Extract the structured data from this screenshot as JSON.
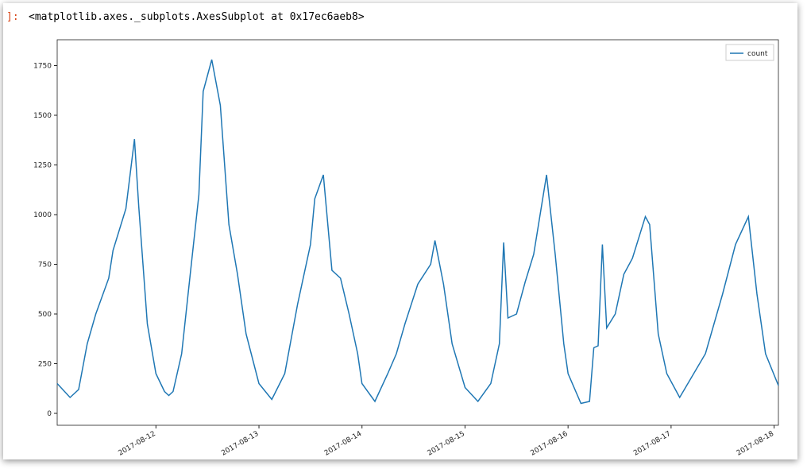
{
  "output_prompt": "]:",
  "output_text": "<matplotlib.axes._subplots.AxesSubplot at 0x17ec6aeb8>",
  "chart_data": {
    "type": "line",
    "x": [
      "2017-08-11T01:00",
      "2017-08-11T04:00",
      "2017-08-11T06:00",
      "2017-08-11T08:00",
      "2017-08-11T10:00",
      "2017-08-11T13:00",
      "2017-08-11T14:00",
      "2017-08-11T17:00",
      "2017-08-11T19:00",
      "2017-08-11T20:00",
      "2017-08-11T22:00",
      "2017-08-12T00:00",
      "2017-08-12T02:00",
      "2017-08-12T03:00",
      "2017-08-12T04:00",
      "2017-08-12T06:00",
      "2017-08-12T08:00",
      "2017-08-12T10:00",
      "2017-08-12T11:00",
      "2017-08-12T13:00",
      "2017-08-12T15:00",
      "2017-08-12T17:00",
      "2017-08-12T19:00",
      "2017-08-12T21:00",
      "2017-08-13T00:00",
      "2017-08-13T03:00",
      "2017-08-13T06:00",
      "2017-08-13T09:00",
      "2017-08-13T12:00",
      "2017-08-13T13:00",
      "2017-08-13T15:00",
      "2017-08-13T17:00",
      "2017-08-13T19:00",
      "2017-08-13T21:00",
      "2017-08-13T23:00",
      "2017-08-14T00:00",
      "2017-08-14T03:00",
      "2017-08-14T06:00",
      "2017-08-14T08:00",
      "2017-08-14T10:00",
      "2017-08-14T13:00",
      "2017-08-14T16:00",
      "2017-08-14T17:00",
      "2017-08-14T19:00",
      "2017-08-14T21:00",
      "2017-08-15T00:00",
      "2017-08-15T03:00",
      "2017-08-15T06:00",
      "2017-08-15T08:00",
      "2017-08-15T09:00",
      "2017-08-15T10:00",
      "2017-08-15T12:00",
      "2017-08-15T14:00",
      "2017-08-15T16:00",
      "2017-08-15T19:00",
      "2017-08-15T21:00",
      "2017-08-15T23:00",
      "2017-08-16T00:00",
      "2017-08-16T03:00",
      "2017-08-16T05:00",
      "2017-08-16T06:00",
      "2017-08-16T07:00",
      "2017-08-16T08:00",
      "2017-08-16T09:00",
      "2017-08-16T11:00",
      "2017-08-16T13:00",
      "2017-08-16T15:00",
      "2017-08-16T18:00",
      "2017-08-16T19:00",
      "2017-08-16T21:00",
      "2017-08-16T23:00",
      "2017-08-17T02:00",
      "2017-08-17T08:00",
      "2017-08-17T10:00",
      "2017-08-17T12:00",
      "2017-08-17T15:00",
      "2017-08-17T18:00",
      "2017-08-17T20:00",
      "2017-08-17T22:00",
      "2017-08-18T01:00"
    ],
    "series": [
      {
        "name": "count",
        "color": "#1f77b4",
        "values": [
          150,
          80,
          120,
          350,
          500,
          680,
          820,
          1030,
          1380,
          1040,
          450,
          200,
          110,
          90,
          110,
          300,
          700,
          1100,
          1620,
          1780,
          1550,
          950,
          700,
          400,
          150,
          70,
          200,
          550,
          850,
          1080,
          1200,
          720,
          680,
          500,
          300,
          150,
          60,
          200,
          300,
          450,
          650,
          750,
          870,
          650,
          350,
          130,
          60,
          150,
          350,
          860,
          480,
          500,
          660,
          800,
          1200,
          800,
          350,
          200,
          50,
          60,
          330,
          340,
          850,
          430,
          500,
          700,
          780,
          990,
          950,
          400,
          200,
          80,
          300,
          450,
          600,
          850,
          990,
          600,
          300,
          140
        ]
      }
    ],
    "xlim": [
      "2017-08-11T01:00",
      "2017-08-18T01:00"
    ],
    "xticks": [
      "2017-08-12",
      "2017-08-13",
      "2017-08-14",
      "2017-08-15",
      "2017-08-16",
      "2017-08-17",
      "2017-08-18"
    ],
    "ylim": [
      -60,
      1880
    ],
    "yticks": [
      0,
      250,
      500,
      750,
      1000,
      1250,
      1500,
      1750
    ],
    "legend": "upper right"
  }
}
